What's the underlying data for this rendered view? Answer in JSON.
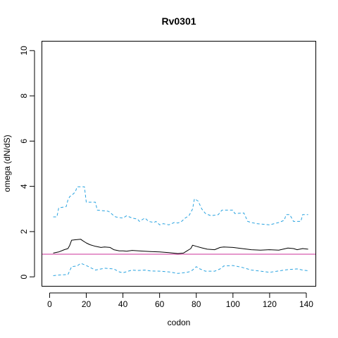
{
  "chart_data": {
    "type": "line",
    "title": "Rv0301",
    "xlabel": "codon",
    "ylabel": "omega (dN/dS)",
    "xlim": [
      -4,
      145
    ],
    "ylim": [
      -0.4,
      10.4
    ],
    "x_ticks": [
      0,
      20,
      40,
      60,
      80,
      100,
      120,
      140
    ],
    "y_ticks": [
      0,
      2,
      4,
      6,
      8,
      10
    ],
    "x_tick_labels": [
      "0",
      "20",
      "40",
      "60",
      "80",
      "100",
      "120",
      "140"
    ],
    "y_tick_labels": [
      "0",
      "2",
      "4",
      "6",
      "8",
      "10"
    ],
    "grid": false,
    "reference_line": {
      "y": 1,
      "color": "#cc3399"
    },
    "series": [
      {
        "style": "solid",
        "color": "#000000",
        "x": [
          2,
          5,
          8,
          10,
          11,
          12,
          14,
          17,
          18,
          20,
          22,
          25,
          28,
          30,
          33,
          35,
          38,
          40,
          42,
          45,
          50,
          55,
          60,
          65,
          70,
          73,
          75,
          77,
          78,
          80,
          83,
          86,
          90,
          93,
          95,
          100,
          105,
          110,
          115,
          120,
          125,
          130,
          133,
          135,
          138,
          141
        ],
        "y": [
          1.05,
          1.1,
          1.2,
          1.25,
          1.4,
          1.62,
          1.64,
          1.66,
          1.6,
          1.5,
          1.42,
          1.35,
          1.3,
          1.32,
          1.3,
          1.2,
          1.15,
          1.15,
          1.13,
          1.17,
          1.14,
          1.12,
          1.1,
          1.07,
          1.03,
          1.05,
          1.15,
          1.25,
          1.4,
          1.35,
          1.28,
          1.22,
          1.2,
          1.3,
          1.32,
          1.3,
          1.25,
          1.2,
          1.18,
          1.2,
          1.18,
          1.27,
          1.25,
          1.2,
          1.25,
          1.22
        ]
      },
      {
        "style": "dashed",
        "color": "#29a3e0",
        "x": [
          2,
          4,
          5,
          9,
          10,
          11,
          12,
          14,
          15,
          19,
          20,
          25,
          26,
          32,
          33,
          35,
          36,
          38,
          40,
          42,
          45,
          48,
          49,
          52,
          54,
          57,
          58,
          60,
          62,
          65,
          68,
          70,
          72,
          74,
          76,
          78,
          79,
          81,
          83,
          85,
          88,
          92,
          94,
          100,
          101,
          106,
          108,
          110,
          113,
          120,
          125,
          128,
          129,
          131,
          133,
          137,
          138,
          141
        ],
        "y": [
          2.65,
          2.65,
          3.05,
          3.1,
          3.4,
          3.55,
          3.6,
          3.75,
          3.98,
          3.98,
          3.3,
          3.3,
          2.95,
          2.9,
          2.85,
          2.7,
          2.65,
          2.62,
          2.6,
          2.7,
          2.6,
          2.55,
          2.45,
          2.6,
          2.45,
          2.4,
          2.45,
          2.3,
          2.35,
          2.3,
          2.4,
          2.38,
          2.45,
          2.6,
          2.7,
          3.0,
          3.45,
          3.35,
          3.0,
          2.8,
          2.7,
          2.75,
          2.95,
          2.95,
          2.8,
          2.82,
          2.45,
          2.4,
          2.35,
          2.3,
          2.4,
          2.5,
          2.75,
          2.75,
          2.45,
          2.45,
          2.75,
          2.75
        ]
      },
      {
        "style": "dashed",
        "color": "#29a3e0",
        "x": [
          2,
          5,
          10,
          12,
          15,
          17,
          20,
          22,
          25,
          30,
          35,
          38,
          40,
          45,
          48,
          52,
          55,
          60,
          65,
          70,
          73,
          76,
          78,
          80,
          82,
          85,
          90,
          93,
          95,
          100,
          105,
          110,
          115,
          120,
          125,
          128,
          130,
          135,
          138,
          141
        ],
        "y": [
          0.05,
          0.08,
          0.1,
          0.45,
          0.48,
          0.6,
          0.5,
          0.42,
          0.3,
          0.38,
          0.35,
          0.22,
          0.18,
          0.3,
          0.28,
          0.3,
          0.26,
          0.25,
          0.22,
          0.15,
          0.18,
          0.22,
          0.3,
          0.45,
          0.35,
          0.25,
          0.25,
          0.35,
          0.48,
          0.5,
          0.42,
          0.3,
          0.25,
          0.2,
          0.26,
          0.3,
          0.32,
          0.35,
          0.3,
          0.27
        ]
      }
    ]
  }
}
